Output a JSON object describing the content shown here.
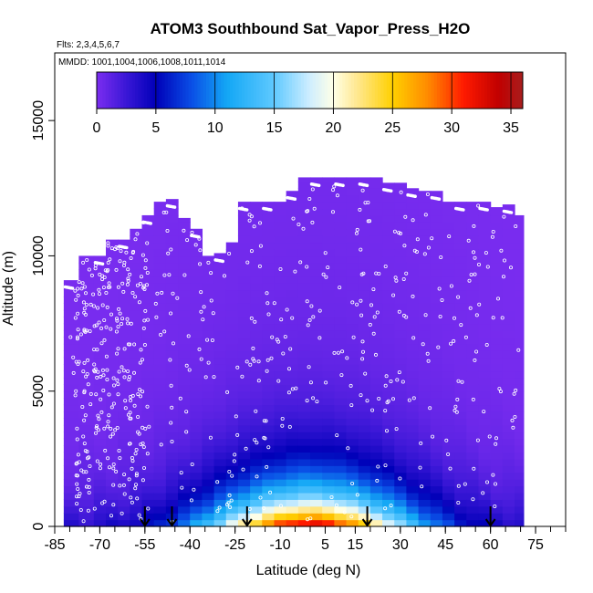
{
  "chart_data": {
    "type": "heatmap",
    "title": "ATOM3 Southbound Sat_Vapor_Press_H2O",
    "subtitle_flights": "Flts: 2,3,4,5,6,7",
    "subtitle_dates": "MMDD: 1001,1004,1006,1008,1011,1014",
    "xlabel": "Latitude (deg N)",
    "ylabel": "Altitude (m)",
    "xlim": [
      -85,
      85
    ],
    "ylim": [
      0,
      17500
    ],
    "x_tick_values": [
      -85,
      -70,
      -55,
      -40,
      -25,
      -10,
      5,
      15,
      30,
      45,
      60,
      75
    ],
    "x_tick_labels": [
      "-85",
      "-70",
      "-55",
      "-40",
      "-25",
      "-10",
      "5",
      "15",
      "30",
      "45",
      "60",
      "75"
    ],
    "y_tick_values": [
      0,
      5000,
      10000,
      15000
    ],
    "y_tick_labels": [
      "0",
      "5000",
      "10000",
      "15000"
    ],
    "colorbar": {
      "min": 0,
      "max": 36,
      "tick_values": [
        0,
        5,
        10,
        15,
        20,
        25,
        30,
        35
      ],
      "tick_labels": [
        "0",
        "5",
        "10",
        "15",
        "20",
        "25",
        "30",
        "35"
      ],
      "stops": [
        {
          "v": 0,
          "c": "#7b2df0"
        },
        {
          "v": 2.5,
          "c": "#3a17d6"
        },
        {
          "v": 5,
          "c": "#0000b8"
        },
        {
          "v": 8,
          "c": "#0a4ee6"
        },
        {
          "v": 11,
          "c": "#13a7f5"
        },
        {
          "v": 15,
          "c": "#5fc9ff"
        },
        {
          "v": 18,
          "c": "#cfeeff"
        },
        {
          "v": 20,
          "c": "#ffffe6"
        },
        {
          "v": 22,
          "c": "#ffe890"
        },
        {
          "v": 25,
          "c": "#ffd000"
        },
        {
          "v": 28,
          "c": "#ff8a00"
        },
        {
          "v": 31,
          "c": "#ff1a00"
        },
        {
          "v": 34,
          "c": "#c00000"
        },
        {
          "v": 36,
          "c": "#a81e1e"
        }
      ]
    },
    "lat_bin_edges": [
      -82,
      -77,
      -72,
      -68,
      -64,
      -60,
      -56,
      -52,
      -48,
      -44,
      -40,
      -36,
      -32,
      -28,
      -24,
      -20,
      -16,
      -12,
      -8,
      -4,
      0,
      4,
      8,
      12,
      16,
      20,
      24,
      28,
      32,
      36,
      40,
      44,
      48,
      52,
      56,
      60,
      64,
      68,
      71
    ],
    "column_top_altitude_m": [
      9100,
      10000,
      10000,
      10600,
      10600,
      11000,
      11500,
      12000,
      12100,
      11400,
      11000,
      10000,
      10100,
      10500,
      12000,
      12000,
      12000,
      12000,
      12400,
      12900,
      12900,
      12900,
      12900,
      12900,
      12900,
      12900,
      12700,
      12700,
      12500,
      12400,
      12400,
      12000,
      12000,
      12000,
      12000,
      11800,
      11900,
      11500
    ],
    "arrow_latitudes": [
      -55,
      -46,
      -21,
      19,
      60
    ],
    "sample_point_color": "#ffffff"
  }
}
